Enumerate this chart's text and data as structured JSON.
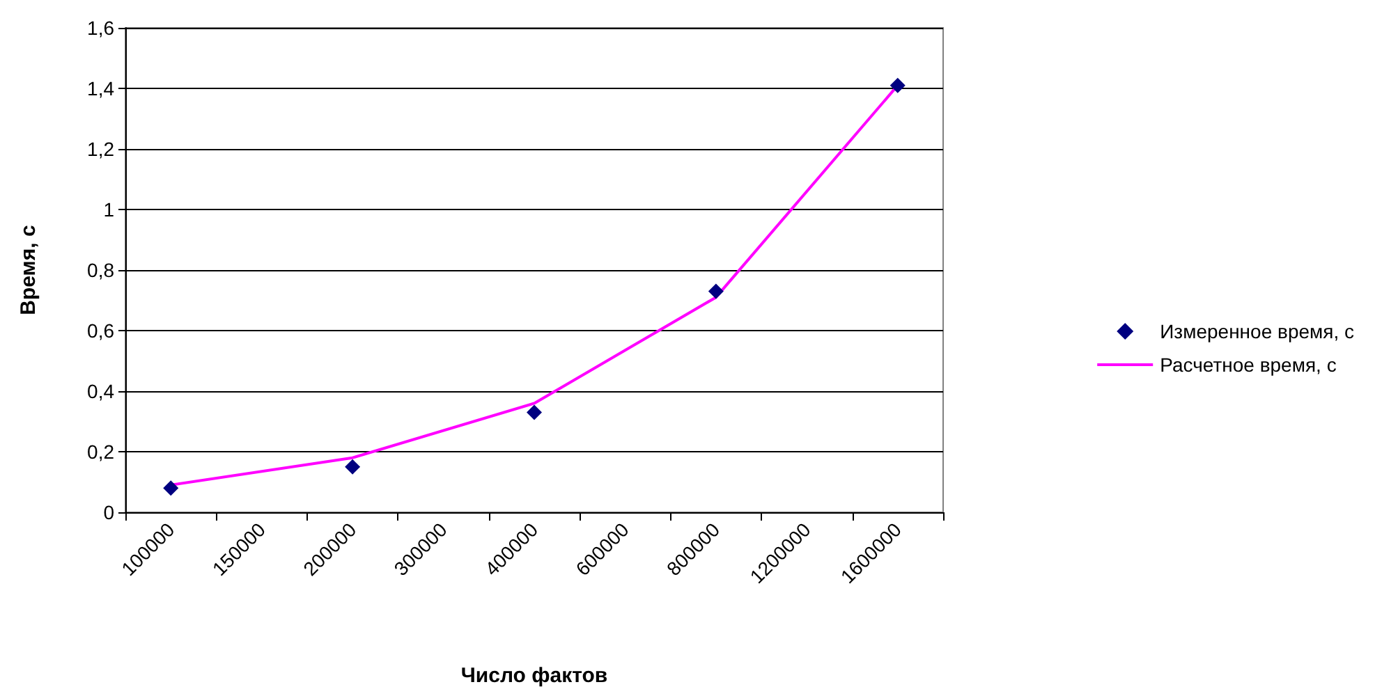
{
  "chart_data": {
    "type": "line",
    "xlabel": "Число фактов",
    "ylabel": "Время, с",
    "categories": [
      "100000",
      "150000",
      "200000",
      "300000",
      "400000",
      "600000",
      "800000",
      "1200000",
      "1600000"
    ],
    "series": [
      {
        "name": "Измеренное время, с",
        "type": "scatter",
        "color": "#000080",
        "marker": "diamond",
        "values": [
          0.08,
          null,
          0.15,
          null,
          0.33,
          null,
          0.73,
          null,
          1.41
        ]
      },
      {
        "name": "Расчетное время, с",
        "color": "#ff00ff",
        "marker": "none",
        "line_style": "solid",
        "values": [
          0.09,
          null,
          0.18,
          null,
          0.36,
          null,
          0.71,
          null,
          1.41
        ]
      }
    ],
    "ylim": [
      0,
      1.6
    ],
    "yticks": [
      0,
      {
        "value": 0.2,
        "label": "0,2"
      },
      {
        "value": 0.4,
        "label": "0,4"
      },
      {
        "value": 0.6,
        "label": "0,6"
      },
      {
        "value": 0.8,
        "label": "0,8"
      },
      1,
      {
        "value": 1.2,
        "label": "1,2"
      },
      {
        "value": 1.4,
        "label": "1,4"
      },
      {
        "value": 1.6,
        "label": "1,6"
      }
    ],
    "grid": "y",
    "legend": "right"
  }
}
